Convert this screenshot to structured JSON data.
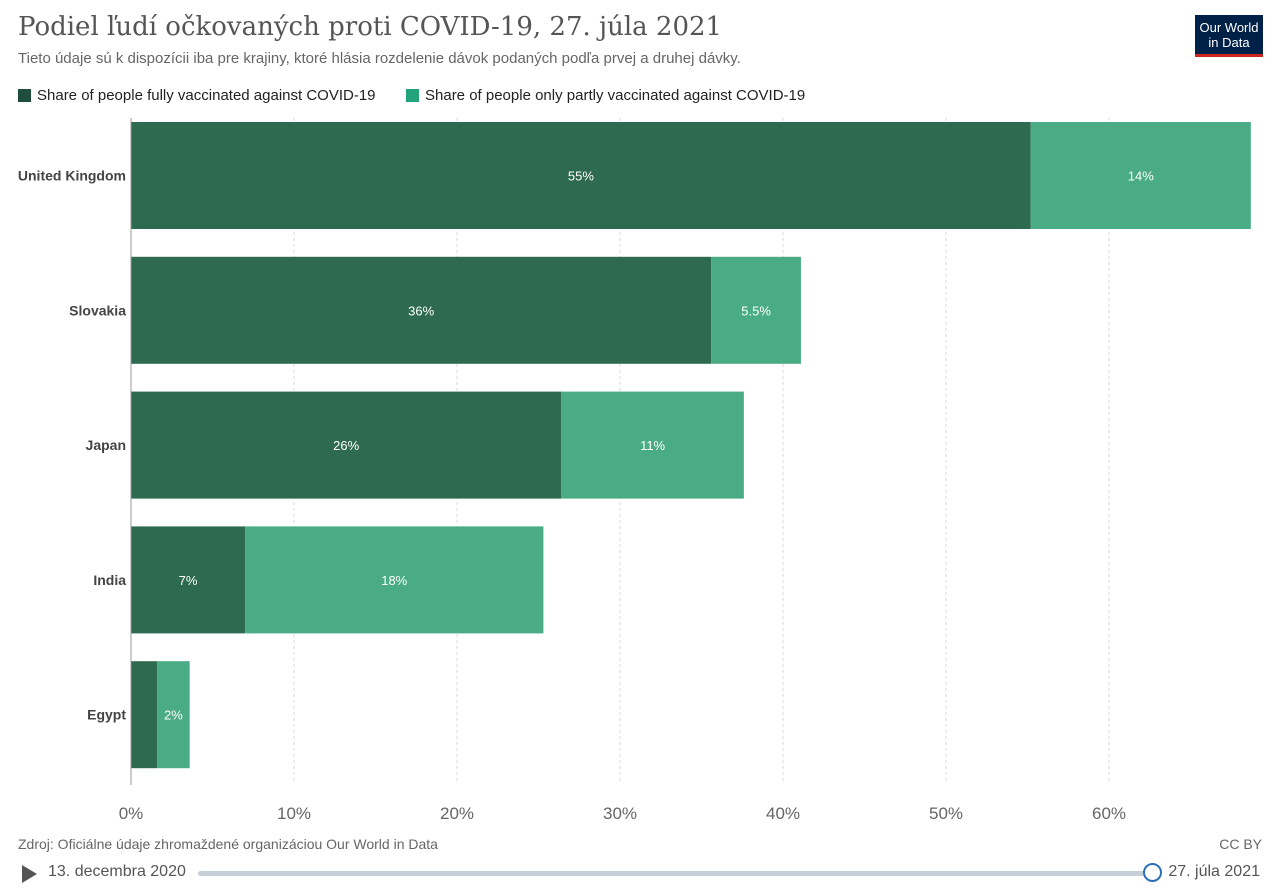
{
  "title": "Podiel ľudí očkovaných proti COVID-19, 27. júla 2021",
  "subtitle": "Tieto údaje sú k dispozícii iba pre krajiny, ktoré hlásia rozdelenie dávok podaných podľa prvej a druhej dávky.",
  "logo": {
    "line1": "Our World",
    "line2": "in Data"
  },
  "colors": {
    "fully": "#2e6a4f",
    "partly": "#4aac85"
  },
  "chart_data": {
    "type": "bar",
    "orientation": "horizontal",
    "stacked": true,
    "categories": [
      "United Kingdom",
      "Slovakia",
      "Japan",
      "India",
      "Egypt"
    ],
    "series": [
      {
        "name": "Share of people fully vaccinated against COVID-19",
        "values": [
          55.2,
          35.6,
          26.4,
          7.0,
          1.6
        ],
        "labels": [
          "55%",
          "36%",
          "26%",
          "7%",
          ""
        ]
      },
      {
        "name": "Share of people only partly vaccinated against COVID-19",
        "values": [
          13.5,
          5.5,
          11.2,
          18.3,
          2.0
        ],
        "labels": [
          "14%",
          "5.5%",
          "11%",
          "18%",
          "2%"
        ]
      }
    ],
    "xlim": [
      0,
      70
    ],
    "xticks": [
      0,
      10,
      20,
      30,
      40,
      50,
      60
    ],
    "xtick_labels": [
      "0%",
      "10%",
      "20%",
      "30%",
      "40%",
      "50%",
      "60%"
    ],
    "grid": true,
    "legend": "top-left"
  },
  "footer": {
    "source": "Zdroj: Oficiálne údaje zhromaždené organizáciou Our World in Data",
    "license": "CC BY"
  },
  "timeline": {
    "start": "13. decembra 2020",
    "end": "27. júla 2021"
  }
}
